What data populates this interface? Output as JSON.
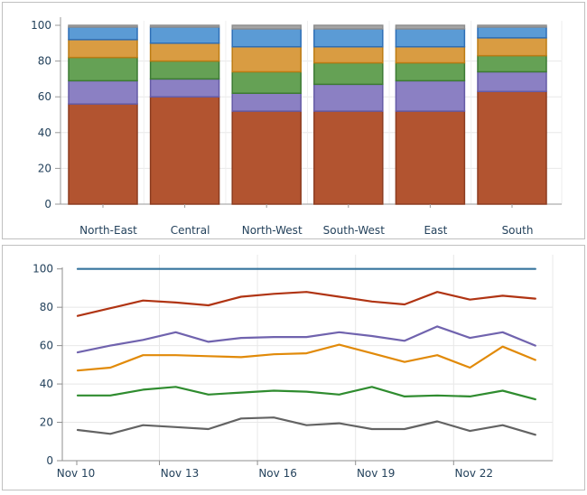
{
  "chart_data": [
    {
      "type": "bar",
      "stacked": true,
      "title": "",
      "categories": [
        "North-East",
        "Central",
        "North-West",
        "South-West",
        "East",
        "South"
      ],
      "series": [
        {
          "name": "rust",
          "color": "#b25430",
          "border": "#8c3c20",
          "values": [
            56,
            60,
            52,
            52,
            52,
            63
          ]
        },
        {
          "name": "purple",
          "color": "#8b80c3",
          "border": "#655ba6",
          "values": [
            13,
            10,
            10,
            15,
            17,
            11
          ]
        },
        {
          "name": "green",
          "color": "#65a155",
          "border": "#3d7a34",
          "values": [
            13,
            10,
            12,
            12,
            10,
            9
          ]
        },
        {
          "name": "orange",
          "color": "#d99c42",
          "border": "#bc7c14",
          "values": [
            10,
            10,
            14,
            9,
            9,
            10
          ]
        },
        {
          "name": "blue",
          "color": "#5b9bd5",
          "border": "#2e6fb7",
          "values": [
            7,
            9,
            10,
            10,
            10,
            6
          ]
        },
        {
          "name": "gray",
          "color": "#a5a5a5",
          "border": "#8f8f8f",
          "values": [
            1,
            1,
            2,
            2,
            2,
            1
          ]
        }
      ],
      "xlabel": "",
      "ylabel": "",
      "ylim": [
        0,
        100
      ],
      "yticks": [
        0,
        20,
        40,
        60,
        80,
        100
      ],
      "grid": true,
      "legend": "none"
    },
    {
      "type": "line",
      "title": "",
      "x": [
        "Nov 10",
        "Nov 11",
        "Nov 12",
        "Nov 13",
        "Nov 14",
        "Nov 15",
        "Nov 16",
        "Nov 17",
        "Nov 18",
        "Nov 19",
        "Nov 20",
        "Nov 21",
        "Nov 22",
        "Nov 23",
        "Nov 24"
      ],
      "x_tick_labels": [
        "Nov 10",
        "Nov 13",
        "Nov 16",
        "Nov 19",
        "Nov 22"
      ],
      "series": [
        {
          "name": "blue",
          "color": "#36749d",
          "values": [
            100,
            100,
            100,
            100,
            100,
            100,
            100,
            100,
            100,
            100,
            100,
            100,
            100,
            100,
            100
          ]
        },
        {
          "name": "red",
          "color": "#b03413",
          "values": [
            75.5,
            79.5,
            83.5,
            82.5,
            81,
            85.5,
            87,
            88,
            85.5,
            83,
            81.5,
            88,
            84,
            86,
            84.5
          ]
        },
        {
          "name": "purple",
          "color": "#7063ae",
          "values": [
            56.5,
            60,
            63,
            67,
            62,
            64,
            64.5,
            64.5,
            67,
            65,
            62.5,
            70,
            64,
            67,
            60
          ]
        },
        {
          "name": "orange",
          "color": "#e18a09",
          "values": [
            47,
            48.5,
            55,
            55,
            54.5,
            54,
            55.5,
            56,
            60.5,
            56,
            51.5,
            55,
            48.5,
            59.5,
            52.5
          ]
        },
        {
          "name": "green",
          "color": "#2f8c2f",
          "values": [
            34,
            34,
            37,
            38.5,
            34.5,
            35.5,
            36.5,
            36,
            34.5,
            38.5,
            33.5,
            34,
            33.5,
            36.5,
            32
          ]
        },
        {
          "name": "gray",
          "color": "#636363",
          "values": [
            16,
            14,
            18.5,
            17.5,
            16.5,
            22,
            22.5,
            18.5,
            19.5,
            16.5,
            16.5,
            20.5,
            15.5,
            18.5,
            13.5
          ]
        }
      ],
      "xlabel": "",
      "ylabel": "",
      "ylim": [
        0,
        100
      ],
      "yticks": [
        0,
        20,
        40,
        60,
        80,
        100
      ],
      "grid": true,
      "legend": "none"
    }
  ],
  "theme": {
    "axis_line_color": "#9a9a9a",
    "grid_color": "#e8e8e8",
    "tick_label_color": "#24425c",
    "panel_border_color": "#c0c0c0"
  }
}
